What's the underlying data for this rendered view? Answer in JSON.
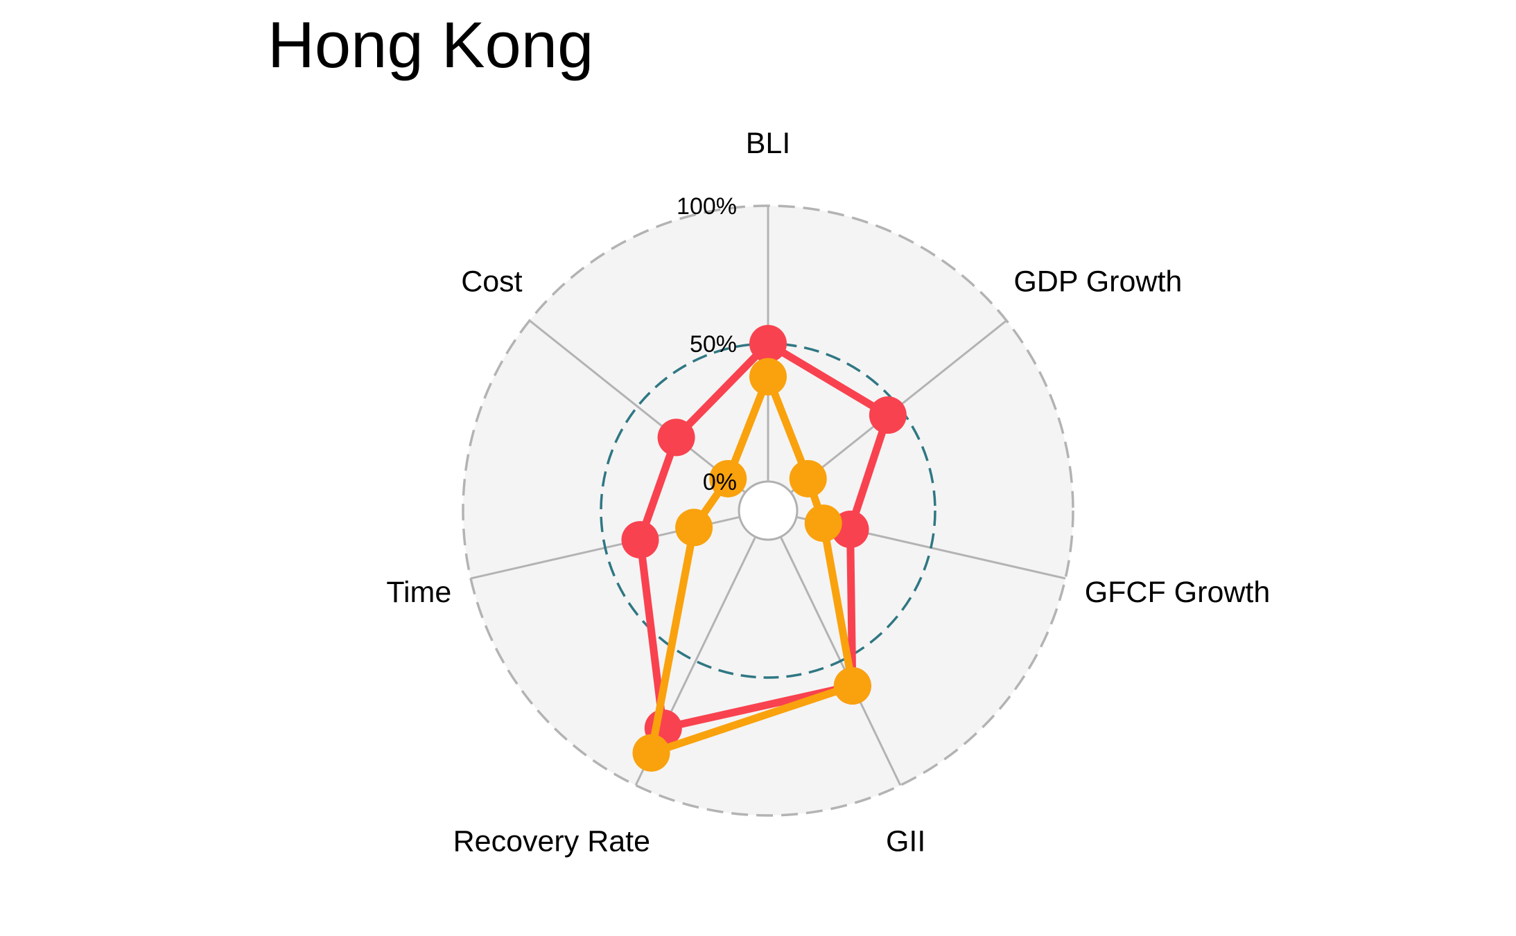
{
  "chart_data": {
    "type": "radar",
    "title": "Hong Kong",
    "axes": [
      "BLI",
      "GDP Growth",
      "GFCF Growth",
      "GII",
      "Recovery Rate",
      "Time",
      "Cost"
    ],
    "ticks": [
      "0%",
      "50%",
      "100%"
    ],
    "range": [
      0,
      100
    ],
    "series": [
      {
        "values": [
          50,
          45,
          20,
          60,
          77,
          37,
          32
        ],
        "color": "#F9424F"
      },
      {
        "values": [
          38,
          8,
          10,
          60,
          87,
          17,
          8
        ],
        "color": "#F9A20D"
      }
    ],
    "grid_style": "dashed circular",
    "background": "#F4F4F4"
  }
}
